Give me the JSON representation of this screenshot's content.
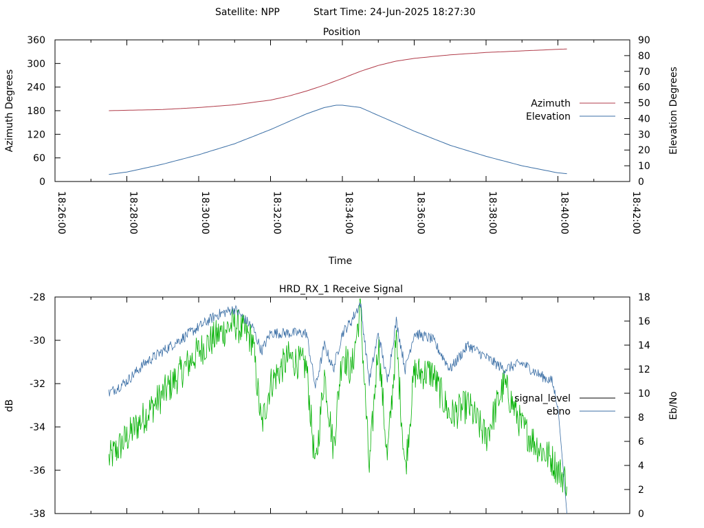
{
  "header": {
    "satellite_label": "Satellite: NPP",
    "start_time_label": "Start Time: 24-Jun-2025 18:27:30"
  },
  "colors": {
    "azimuth": "#b03a48",
    "elevation": "#3a6ea5",
    "signal_level": "#000000",
    "ebno": "#3a6ea5",
    "green_trace": "#00b000"
  },
  "chart_data": [
    {
      "type": "line",
      "title": "Position",
      "xlabel": "Time",
      "ylabel": "Azimuth Degrees",
      "y2label": "Elevation Degrees",
      "x_ticks": [
        "18:26:00",
        "18:28:00",
        "18:30:00",
        "18:32:00",
        "18:34:00",
        "18:36:00",
        "18:38:00",
        "18:40:00",
        "18:42:00"
      ],
      "xlim": [
        "18:26:00",
        "18:42:00"
      ],
      "ylim": [
        0,
        360
      ],
      "y_ticks": [
        "0",
        "60",
        "120",
        "180",
        "240",
        "300",
        "360"
      ],
      "y2lim": [
        0,
        90
      ],
      "y2_ticks": [
        "0",
        "10",
        "20",
        "30",
        "40",
        "50",
        "60",
        "70",
        "80",
        "90"
      ],
      "legend_position": "right",
      "series": [
        {
          "name": "Azimuth",
          "axis": "y",
          "x": [
            "18:27:30",
            "18:28:00",
            "18:29:00",
            "18:30:00",
            "18:31:00",
            "18:32:00",
            "18:32:30",
            "18:33:00",
            "18:33:30",
            "18:34:00",
            "18:34:30",
            "18:35:00",
            "18:35:30",
            "18:36:00",
            "18:37:00",
            "18:38:00",
            "18:39:00",
            "18:40:00",
            "18:40:15"
          ],
          "values": [
            180,
            181,
            183,
            188,
            195,
            207,
            217,
            230,
            245,
            262,
            280,
            295,
            306,
            313,
            322,
            328,
            332,
            336,
            337
          ]
        },
        {
          "name": "Elevation",
          "axis": "y2",
          "x": [
            "18:27:30",
            "18:28:00",
            "18:29:00",
            "18:30:00",
            "18:31:00",
            "18:32:00",
            "18:32:30",
            "18:33:00",
            "18:33:30",
            "18:33:50",
            "18:34:00",
            "18:34:30",
            "18:35:00",
            "18:35:30",
            "18:36:00",
            "18:37:00",
            "18:38:00",
            "18:39:00",
            "18:40:00",
            "18:40:15"
          ],
          "values": [
            4.5,
            6,
            11,
            17,
            24,
            33,
            38,
            43,
            47,
            48.5,
            48.5,
            47,
            42,
            37,
            32,
            23,
            16,
            10,
            5.5,
            5
          ]
        }
      ]
    },
    {
      "type": "line",
      "title": "HRD_RX_1 Receive Signal",
      "ylabel": "dB",
      "y2label": "Eb/No",
      "xlim": [
        "18:26:00",
        "18:42:00"
      ],
      "ylim": [
        -38,
        -28
      ],
      "y_ticks": [
        "-28",
        "-30",
        "-32",
        "-34",
        "-36",
        "-38"
      ],
      "y2lim": [
        0,
        18
      ],
      "y2_ticks": [
        "0",
        "2",
        "4",
        "6",
        "8",
        "10",
        "12",
        "14",
        "16",
        "18"
      ],
      "legend_position": "right",
      "series": [
        {
          "name": "signal_level",
          "axis": "y",
          "x": [],
          "values": []
        },
        {
          "name": "ebno",
          "axis": "y2",
          "x": [
            "18:27:30",
            "18:28:00",
            "18:28:30",
            "18:29:00",
            "18:29:30",
            "18:30:00",
            "18:30:30",
            "18:31:00",
            "18:31:30",
            "18:31:45",
            "18:32:00",
            "18:32:30",
            "18:33:00",
            "18:33:15",
            "18:33:30",
            "18:33:45",
            "18:34:00",
            "18:34:15",
            "18:34:30",
            "18:34:45",
            "18:35:00",
            "18:35:15",
            "18:35:30",
            "18:35:45",
            "18:36:00",
            "18:36:30",
            "18:37:00",
            "18:37:30",
            "18:38:00",
            "18:38:30",
            "18:39:00",
            "18:39:30",
            "18:39:50",
            "18:40:00",
            "18:40:15"
          ],
          "values": [
            10,
            11,
            12.5,
            13.5,
            14.5,
            15.5,
            16.5,
            17,
            15.5,
            13.5,
            15,
            15,
            15,
            10.5,
            14,
            12,
            15,
            16,
            17.5,
            11,
            15,
            11,
            16,
            12,
            15,
            14.5,
            12,
            14,
            13,
            12,
            12.5,
            11.5,
            11,
            9,
            0
          ]
        },
        {
          "name": "",
          "axis": "y",
          "x": [
            "18:27:30",
            "18:28:00",
            "18:28:30",
            "18:29:00",
            "18:29:30",
            "18:30:00",
            "18:30:30",
            "18:31:00",
            "18:31:30",
            "18:31:45",
            "18:32:00",
            "18:32:30",
            "18:33:00",
            "18:33:15",
            "18:33:30",
            "18:33:45",
            "18:34:00",
            "18:34:15",
            "18:34:30",
            "18:34:45",
            "18:35:00",
            "18:35:15",
            "18:35:30",
            "18:35:45",
            "18:36:00",
            "18:36:30",
            "18:37:00",
            "18:37:30",
            "18:38:00",
            "18:38:30",
            "18:39:00",
            "18:39:30",
            "18:39:50",
            "18:40:00",
            "18:40:15"
          ],
          "values": [
            -35.5,
            -34.5,
            -33.5,
            -32.5,
            -31.5,
            -30.5,
            -29.8,
            -29.2,
            -30,
            -34,
            -32,
            -30.8,
            -31.2,
            -36,
            -31.5,
            -35,
            -30.5,
            -31.5,
            -28.5,
            -36,
            -30,
            -35.5,
            -30,
            -36,
            -31.5,
            -31.5,
            -33.5,
            -33,
            -34.5,
            -32,
            -34,
            -35,
            -35.5,
            -36,
            -36.5
          ]
        }
      ]
    }
  ]
}
